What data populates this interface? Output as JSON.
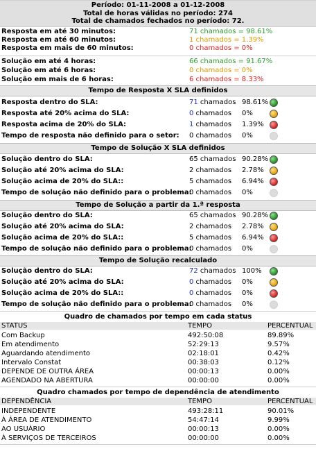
{
  "header": {
    "period": "Período: 01-11-2008 a 01-12-2008",
    "valid_hours": "Total de horas válidas no período: 274",
    "closed_tickets": "Total de chamados fechados no período: 72."
  },
  "response_summary": [
    {
      "label": "Resposta em até 30 minutos:",
      "value": "71 chamados = 98.61%",
      "color": "#2e9a2e"
    },
    {
      "label": "Resposta em até 60 minutos:",
      "value": "1 chamados = 1.39%",
      "color": "#e09a00"
    },
    {
      "label": "Resposta em mais de 60 minutos:",
      "value": "0 chamados =  0%",
      "color": "#e02020"
    }
  ],
  "solution_summary": [
    {
      "label": "Solução em até 4 horas:",
      "value": "66 chamados = 91.67%",
      "color": "#2e9a2e"
    },
    {
      "label": "Solução em até 6 horas:",
      "value": "0 chamados =  0%",
      "color": "#e09a00"
    },
    {
      "label": "Solução em mais de 6 horas:",
      "value": "6 chamados =  8.33%",
      "color": "#e02020"
    }
  ],
  "sections": [
    {
      "title": "Tempo de Resposta X SLA definidos",
      "rows": [
        {
          "label": "Resposta dentro do SLA:",
          "n": "71",
          "suffix": " chamados",
          "pct": "98.61%",
          "status": "green",
          "blue": true
        },
        {
          "label": "Resposta até 20% acima do SLA:",
          "n": "0",
          "suffix": " chamados",
          "pct": "0%",
          "status": "orange",
          "blue": true
        },
        {
          "label": "Resposta acima de 20% do SLA:",
          "n": "1",
          "suffix": " chamados",
          "pct": "1.39%",
          "status": "red",
          "blue": true
        },
        {
          "label": "Tempo de resposta não definido para o setor:",
          "n": "0",
          "suffix": " chamados",
          "pct": "0%",
          "status": "gray",
          "blue": false
        }
      ]
    },
    {
      "title": "Tempo de Solução X SLA definidos",
      "rows": [
        {
          "label": "Solução dentro do SLA:",
          "n": "65",
          "suffix": " chamados",
          "pct": "90.28%",
          "status": "green",
          "blue": false
        },
        {
          "label": "Solução até 20% acima do SLA:",
          "n": "2",
          "suffix": " chamados",
          "pct": "2.78%",
          "status": "orange",
          "blue": false
        },
        {
          "label": "Solução acima de 20% do SLA::",
          "n": "5",
          "suffix": " chamados",
          "pct": "6.94%",
          "status": "red",
          "blue": false
        },
        {
          "label": "Tempo de solução não definido para o problema:",
          "n": "0",
          "suffix": " chamados",
          "pct": "0%",
          "status": "gray",
          "blue": false
        }
      ]
    },
    {
      "title": "Tempo de Solução a partir da 1.ª resposta",
      "rows": [
        {
          "label": "Solução dentro do SLA:",
          "n": "65",
          "suffix": " chamados",
          "pct": "90.28%",
          "status": "green",
          "blue": false
        },
        {
          "label": "Solução até 20% acima do SLA:",
          "n": "2",
          "suffix": " chamados",
          "pct": "2.78%",
          "status": "orange",
          "blue": false
        },
        {
          "label": "Solução acima de 20% do SLA::",
          "n": "5",
          "suffix": " chamados",
          "pct": "6.94%",
          "status": "red",
          "blue": false
        },
        {
          "label": "Tempo de solução não definido para o problema:",
          "n": "0",
          "suffix": " chamados",
          "pct": "0%",
          "status": "gray",
          "blue": false
        }
      ]
    },
    {
      "title": "Tempo de Solução recalculado",
      "rows": [
        {
          "label": "Solução dentro do SLA:",
          "n": "72",
          "suffix": " chamados",
          "pct": "100%",
          "status": "green",
          "blue": true
        },
        {
          "label": "Solução até 20% acima do SLA:",
          "n": "0",
          "suffix": " chamados",
          "pct": "0%",
          "status": "orange",
          "blue": true
        },
        {
          "label": "Solução acima de 20% do SLA::",
          "n": "0",
          "suffix": " chamados",
          "pct": "0%",
          "status": "red",
          "blue": true
        },
        {
          "label": "Tempo de solução não definido para o problema:",
          "n": "0",
          "suffix": " chamados",
          "pct": "0%",
          "status": "gray",
          "blue": false
        }
      ]
    }
  ],
  "status_table": {
    "title": "Quadro de chamados por tempo em cada status",
    "headers": [
      "STATUS",
      "TEMPO",
      "PERCENTUAL"
    ],
    "rows": [
      [
        "Com Backup",
        "492:50:08",
        "89.89%"
      ],
      [
        "Em atendimento",
        "52:29:13",
        "9.57%"
      ],
      [
        "Aguardando atendimento",
        "02:18:01",
        "0.42%"
      ],
      [
        "Intervalo Constat",
        "00:38:03",
        "0.12%"
      ],
      [
        "DEPENDE DE OUTRA ÁREA",
        "00:00:13",
        "0.00%"
      ],
      [
        "AGENDADO NA ABERTURA",
        "00:00:00",
        "0.00%"
      ]
    ]
  },
  "dependency_table": {
    "title": "Quadro chamados por tempo de dependência de atendimento",
    "headers": [
      "DEPENDÊNCIA",
      "TEMPO",
      "PERCENTUAL"
    ],
    "rows": [
      [
        "INDEPENDENTE",
        "493:28:11",
        "90.01%"
      ],
      [
        "À ÁREA DE ATENDIMENTO",
        "54:47:14",
        "9.99%"
      ],
      [
        "AO USUÁRIO",
        "00:00:13",
        "0.00%"
      ],
      [
        "À SERVIÇOS DE TERCEIROS",
        "00:00:00",
        "0.00%"
      ]
    ]
  }
}
